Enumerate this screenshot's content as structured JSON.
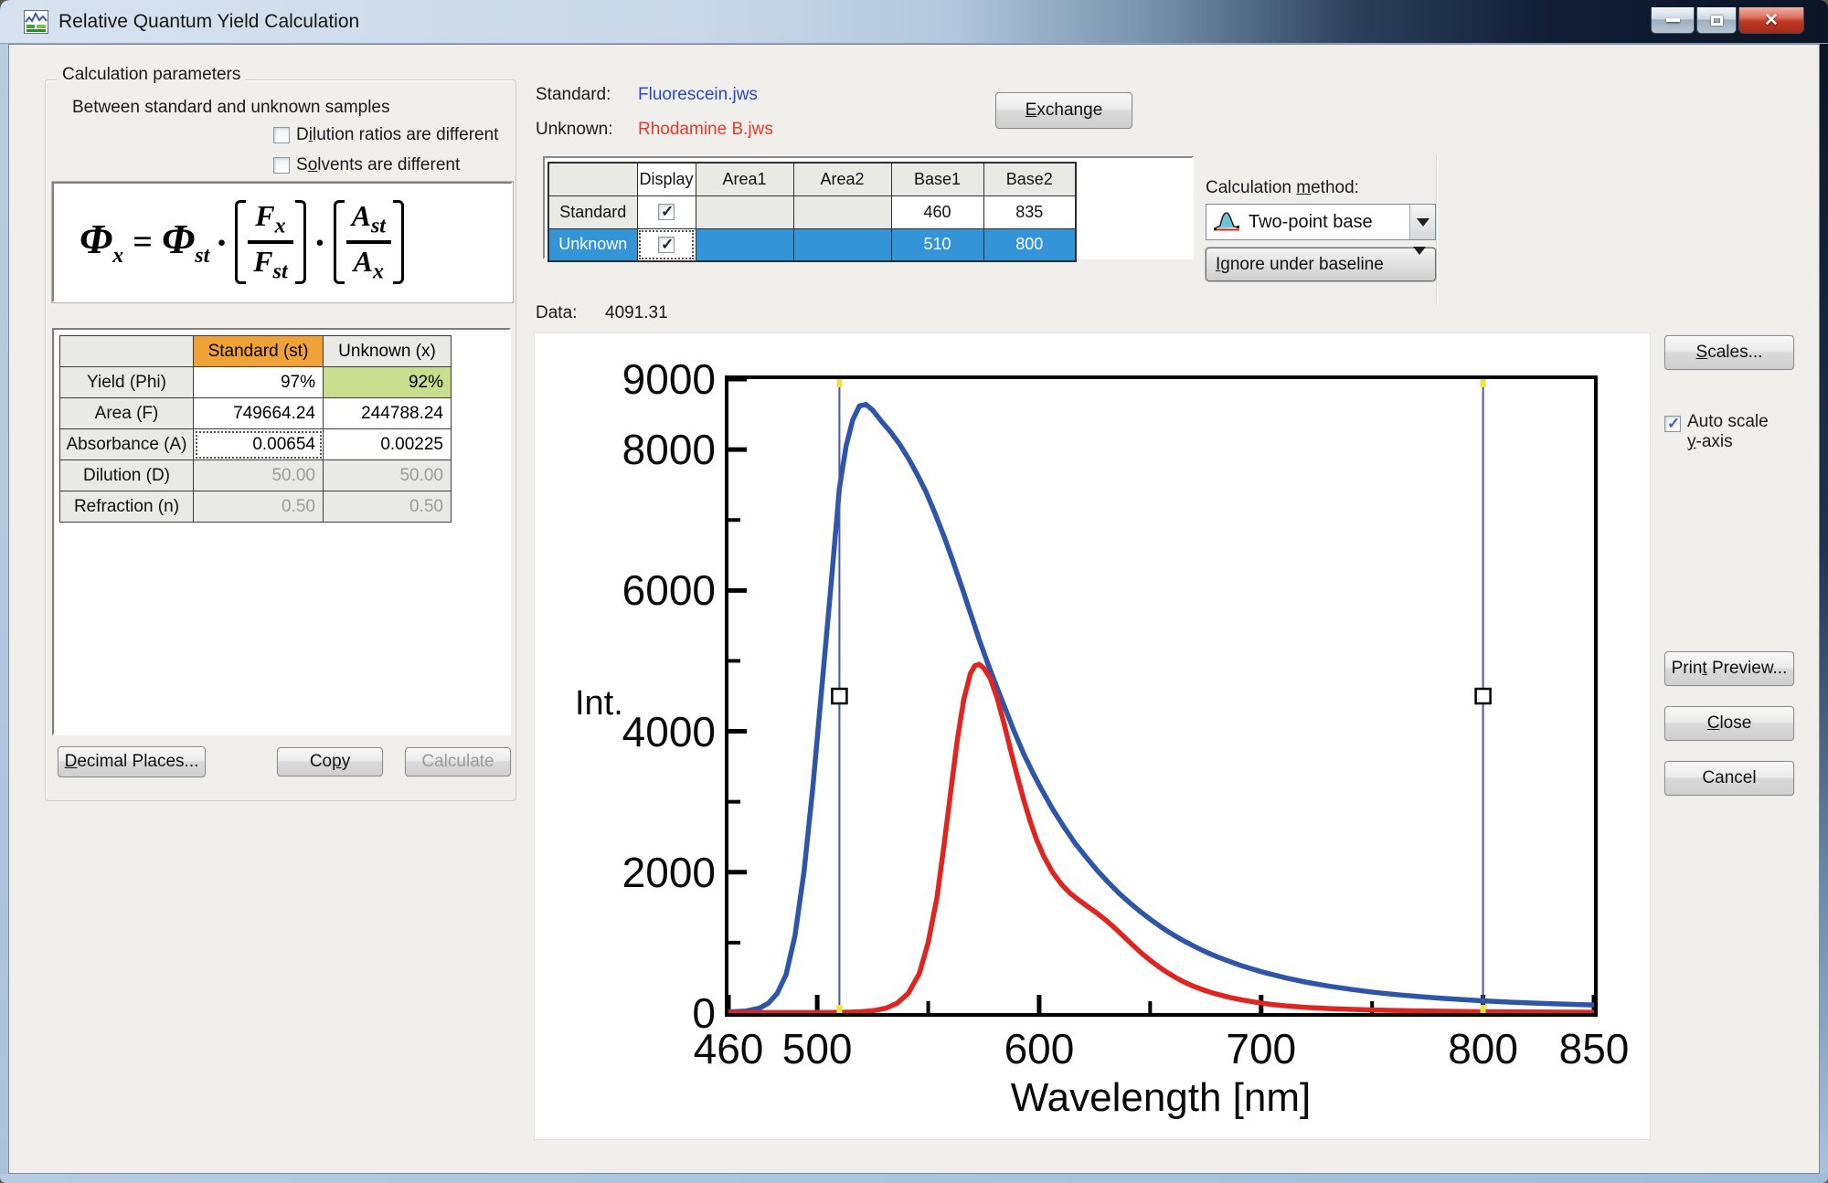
{
  "window": {
    "title": "Relative Quantum Yield Calculation"
  },
  "left_panel": {
    "group_title": "Calculation parameters",
    "subtitle": "Between standard and unknown samples",
    "checkbox_dilution": {
      "pre": "D",
      "key": "i",
      "post": "lution ratios are different",
      "checked": false
    },
    "checkbox_solvents": {
      "pre": "S",
      "key": "o",
      "post": "lvents are different",
      "checked": false
    },
    "formula": {
      "lhs": "Φ",
      "lhs_sub": "x",
      "eq": "=",
      "rhs": "Φ",
      "rhs_sub": "st",
      "dot": "·",
      "frac1_num": "F",
      "frac1_num_sub": "x",
      "frac1_den": "F",
      "frac1_den_sub": "st",
      "frac2_num": "A",
      "frac2_num_sub": "st",
      "frac2_den": "A",
      "frac2_den_sub": "x"
    },
    "table": {
      "col_standard": "Standard (st)",
      "col_unknown": "Unknown (x)",
      "rows": [
        {
          "label": "Yield (Phi)",
          "std": "97%",
          "unk": "92%"
        },
        {
          "label": "Area (F)",
          "std": "749664.24",
          "unk": "244788.24"
        },
        {
          "label": "Absorbance (A)",
          "std": "0.00654",
          "unk": "0.00225"
        },
        {
          "label": "Dilution (D)",
          "std": "50.00",
          "unk": "50.00"
        },
        {
          "label": "Refraction (n)",
          "std": "0.50",
          "unk": "0.50"
        }
      ]
    },
    "buttons": {
      "decimal": {
        "pre": "",
        "key": "D",
        "post": "ecimal Places..."
      },
      "copy": {
        "pre": "Co",
        "key": "p",
        "post": "y"
      },
      "calculate": "Calculate"
    }
  },
  "top": {
    "standard_label": "Standard:",
    "standard_file": "Fluorescein.jws",
    "unknown_label": "Unknown:",
    "unknown_file": "Rhodamine B.jws",
    "exchange": {
      "pre": "",
      "key": "E",
      "post": "xchange"
    },
    "grid": {
      "headers": [
        "Display",
        "Area1",
        "Area2",
        "Base1",
        "Base2"
      ],
      "rows": [
        {
          "name": "Standard",
          "display_checked": true,
          "area1": "",
          "area2": "",
          "base1": "460",
          "base2": "835",
          "selected": false
        },
        {
          "name": "Unknown",
          "display_checked": true,
          "area1": "",
          "area2": "",
          "base1": "510",
          "base2": "800",
          "selected": true
        }
      ]
    },
    "calc_method_label": {
      "pre": "Calculation ",
      "key": "m",
      "post": "ethod:"
    },
    "method_selected": "Two-point base",
    "baseline_mode": {
      "pre": "",
      "key": "I",
      "post": "gnore under baseline"
    },
    "data_label": "Data:",
    "data_value": "4091.31"
  },
  "right": {
    "scales": {
      "pre": "",
      "key": "S",
      "post": "cales..."
    },
    "autoscale_line1": "Auto scale",
    "autoscale_line2": {
      "pre": "",
      "key": "y",
      "post": "-axis"
    },
    "autoscale_checked": true,
    "print_preview": {
      "pre": "Prin",
      "key": "t",
      "post": " Preview..."
    },
    "close": {
      "pre": "",
      "key": "C",
      "post": "lose"
    },
    "cancel": "Cancel"
  },
  "colors": {
    "selected_row": "#3494d8",
    "standard_header": "#f0a236",
    "unknown_yield_bg": "#c8dd8e",
    "standard_file": "#2a48c8",
    "unknown_file": "#e8392c",
    "blue_curve": "#2e55a8",
    "red_curve": "#e02420",
    "cursor_line": "#4a55a0",
    "cursor_mark": "#f2e23c"
  },
  "chart_data": {
    "type": "line",
    "title": "",
    "xlabel": "Wavelength [nm]",
    "ylabel": "Int.",
    "xlim": [
      460,
      850
    ],
    "ylim": [
      0,
      9000
    ],
    "grid": false,
    "legend": "none",
    "x_ticks": [
      {
        "v": 460,
        "label": "460"
      },
      {
        "v": 500,
        "label": "500"
      },
      {
        "v": 550
      },
      {
        "v": 600,
        "label": "600"
      },
      {
        "v": 650
      },
      {
        "v": 700,
        "label": "700"
      },
      {
        "v": 750
      },
      {
        "v": 800,
        "label": "800"
      },
      {
        "v": 850,
        "label": "850"
      }
    ],
    "y_ticks": [
      {
        "v": 9000,
        "label": "9000"
      },
      {
        "v": 8000,
        "label": "8000"
      },
      {
        "v": 7000
      },
      {
        "v": 6000,
        "label": "6000"
      },
      {
        "v": 5000
      },
      {
        "v": 4000,
        "label": "4000"
      },
      {
        "v": 3000
      },
      {
        "v": 2000,
        "label": "2000"
      },
      {
        "v": 1000
      },
      {
        "v": 0,
        "label": "0"
      }
    ],
    "cursors": [
      {
        "x": 510,
        "handle_y": 4500
      },
      {
        "x": 800,
        "handle_y": 4500
      }
    ],
    "series": [
      {
        "name": "Fluorescein.jws (Standard)",
        "color": "#2e55a8",
        "points": [
          [
            460,
            15
          ],
          [
            468,
            30
          ],
          [
            474,
            70
          ],
          [
            478,
            140
          ],
          [
            482,
            280
          ],
          [
            486,
            550
          ],
          [
            490,
            1100
          ],
          [
            494,
            2000
          ],
          [
            498,
            3200
          ],
          [
            502,
            4600
          ],
          [
            506,
            6000
          ],
          [
            510,
            7450
          ],
          [
            513,
            8050
          ],
          [
            516,
            8420
          ],
          [
            519,
            8620
          ],
          [
            522,
            8640
          ],
          [
            525,
            8560
          ],
          [
            529,
            8400
          ],
          [
            533,
            8250
          ],
          [
            537,
            8080
          ],
          [
            541,
            7880
          ],
          [
            545,
            7650
          ],
          [
            549,
            7400
          ],
          [
            553,
            7100
          ],
          [
            557,
            6780
          ],
          [
            561,
            6430
          ],
          [
            565,
            6060
          ],
          [
            569,
            5680
          ],
          [
            573,
            5300
          ],
          [
            577,
            4950
          ],
          [
            581,
            4620
          ],
          [
            585,
            4300
          ],
          [
            589,
            3980
          ],
          [
            593,
            3680
          ],
          [
            597,
            3420
          ],
          [
            601,
            3180
          ],
          [
            606,
            2900
          ],
          [
            611,
            2650
          ],
          [
            616,
            2420
          ],
          [
            621,
            2220
          ],
          [
            626,
            2030
          ],
          [
            631,
            1860
          ],
          [
            636,
            1700
          ],
          [
            641,
            1560
          ],
          [
            646,
            1430
          ],
          [
            651,
            1310
          ],
          [
            656,
            1200
          ],
          [
            661,
            1100
          ],
          [
            666,
            1010
          ],
          [
            671,
            930
          ],
          [
            676,
            855
          ],
          [
            681,
            790
          ],
          [
            686,
            730
          ],
          [
            691,
            675
          ],
          [
            696,
            625
          ],
          [
            701,
            580
          ],
          [
            711,
            500
          ],
          [
            721,
            435
          ],
          [
            731,
            380
          ],
          [
            741,
            335
          ],
          [
            751,
            295
          ],
          [
            761,
            262
          ],
          [
            771,
            235
          ],
          [
            781,
            210
          ],
          [
            791,
            190
          ],
          [
            801,
            172
          ],
          [
            811,
            157
          ],
          [
            821,
            144
          ],
          [
            831,
            133
          ],
          [
            841,
            123
          ],
          [
            850,
            115
          ]
        ]
      },
      {
        "name": "Rhodamine B.jws (Unknown)",
        "color": "#e02420",
        "points": [
          [
            460,
            8
          ],
          [
            500,
            8
          ],
          [
            512,
            12
          ],
          [
            520,
            20
          ],
          [
            526,
            38
          ],
          [
            531,
            70
          ],
          [
            536,
            140
          ],
          [
            541,
            280
          ],
          [
            546,
            560
          ],
          [
            550,
            1000
          ],
          [
            554,
            1650
          ],
          [
            557,
            2350
          ],
          [
            560,
            3100
          ],
          [
            563,
            3850
          ],
          [
            566,
            4450
          ],
          [
            569,
            4820
          ],
          [
            571,
            4930
          ],
          [
            573,
            4950
          ],
          [
            575,
            4900
          ],
          [
            578,
            4750
          ],
          [
            581,
            4480
          ],
          [
            584,
            4130
          ],
          [
            587,
            3750
          ],
          [
            590,
            3380
          ],
          [
            593,
            3030
          ],
          [
            596,
            2720
          ],
          [
            599,
            2450
          ],
          [
            602,
            2230
          ],
          [
            606,
            2000
          ],
          [
            610,
            1830
          ],
          [
            614,
            1700
          ],
          [
            618,
            1600
          ],
          [
            622,
            1510
          ],
          [
            626,
            1420
          ],
          [
            630,
            1320
          ],
          [
            634,
            1210
          ],
          [
            638,
            1090
          ],
          [
            642,
            970
          ],
          [
            646,
            855
          ],
          [
            650,
            750
          ],
          [
            654,
            655
          ],
          [
            658,
            570
          ],
          [
            662,
            495
          ],
          [
            666,
            430
          ],
          [
            670,
            375
          ],
          [
            675,
            318
          ],
          [
            680,
            270
          ],
          [
            686,
            222
          ],
          [
            692,
            184
          ],
          [
            698,
            152
          ],
          [
            705,
            122
          ],
          [
            712,
            100
          ],
          [
            720,
            82
          ],
          [
            730,
            65
          ],
          [
            740,
            53
          ],
          [
            750,
            44
          ],
          [
            760,
            37
          ],
          [
            770,
            31
          ],
          [
            780,
            27
          ],
          [
            790,
            23
          ],
          [
            800,
            20
          ],
          [
            810,
            18
          ],
          [
            820,
            16
          ],
          [
            830,
            14
          ],
          [
            840,
            13
          ],
          [
            850,
            12
          ]
        ]
      }
    ]
  }
}
